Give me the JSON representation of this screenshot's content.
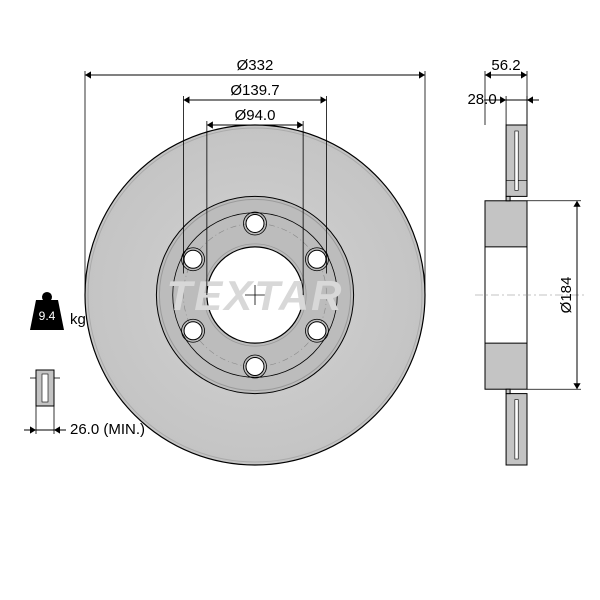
{
  "drawing": {
    "type": "engineering-diagram",
    "part": "brake-disc",
    "brand_watermark": "TEXTAR",
    "weight": {
      "value": "9.4",
      "unit": "kg"
    },
    "min_thickness": {
      "label": "26.0 (MIN.)",
      "value": 26.0
    },
    "front_view": {
      "outer_diameter": {
        "label": "Ø332",
        "value": 332
      },
      "bolt_circle_diameter": {
        "label": "Ø139.7",
        "value": 139.7
      },
      "center_bore_diameter": {
        "label": "Ø94.0",
        "value": 94.0
      },
      "bolt_holes": 6,
      "colors": {
        "disc_face": "#c4c4c4",
        "disc_face_light": "#d2d2d2",
        "hub_face": "#bcbcbc",
        "bore": "#ffffff",
        "outline": "#000000"
      }
    },
    "side_view": {
      "total_depth": {
        "label": "56.2",
        "value": 56.2
      },
      "disc_thickness": {
        "label": "28.0",
        "value": 28.0
      },
      "hat_diameter": {
        "label": "Ø184",
        "value": 184
      },
      "colors": {
        "fill": "#c4c4c4",
        "hatch": "#999999",
        "outline": "#000000"
      }
    },
    "background_color": "#ffffff",
    "line_color": "#000000",
    "text_color": "#000000",
    "font_size_pt": 11
  }
}
